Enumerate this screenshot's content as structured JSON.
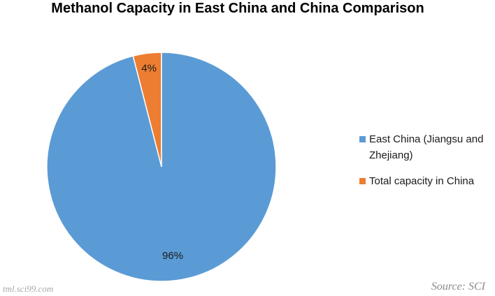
{
  "chart_data": {
    "type": "pie",
    "title": "Methanol Capacity in East China and China Comparison",
    "slices": [
      {
        "name": "East China (Jiangsu and Zhejiang)",
        "value": 96,
        "label": "96%",
        "color": "#5b9bd5"
      },
      {
        "name": "Total capacity in China",
        "value": 4,
        "label": "4%",
        "color": "#ed7d31"
      }
    ],
    "legend_position": "right"
  },
  "source_text": "Source: SCI",
  "watermark_text": "tml.sci99.com"
}
